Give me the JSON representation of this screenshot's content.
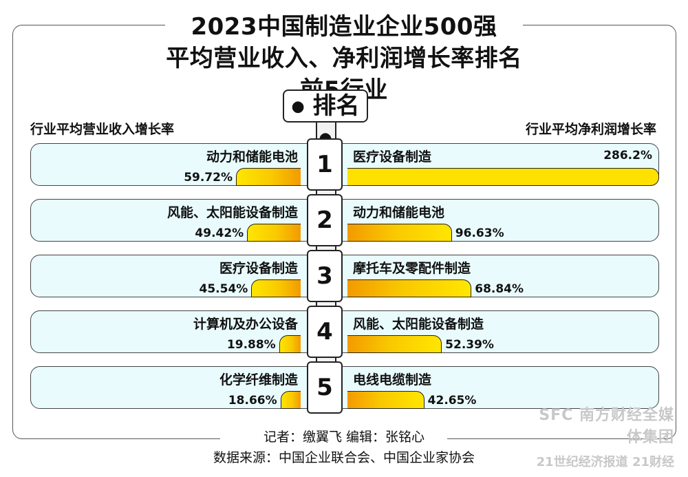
{
  "title": {
    "line1": "2023中国制造业企业500强",
    "line2": "平均营业收入、净利润增长率排名前5行业"
  },
  "rank_label": "排名",
  "left_header": "行业平均营业收入增长率",
  "right_header": "行业平均净利润增长率",
  "chart_data": {
    "type": "bar",
    "categories": [
      "1",
      "2",
      "3",
      "4",
      "5"
    ],
    "series": [
      {
        "name": "行业平均营业收入增长率",
        "labels": [
          "动力和储能电池",
          "风能、太阳能设备制造",
          "医疗设备制造",
          "计算机及办公设备",
          "化学纤维制造"
        ],
        "values": [
          59.72,
          49.42,
          45.54,
          19.88,
          18.66
        ],
        "value_labels": [
          "59.72%",
          "49.42%",
          "45.54%",
          "19.88%",
          "18.66%"
        ]
      },
      {
        "name": "行业平均净利润增长率",
        "labels": [
          "医疗设备制造",
          "动力和储能电池",
          "摩托车及零配件制造",
          "风能、太阳能设备制造",
          "电线电缆制造"
        ],
        "values": [
          286.2,
          96.63,
          68.84,
          52.39,
          42.65
        ],
        "value_labels": [
          "286.2%",
          "96.63%",
          "68.84%",
          "52.39%",
          "42.65%"
        ]
      }
    ],
    "unit": "%",
    "bar_color": "#ffe100",
    "box_color": "#e9fbfd"
  },
  "footer": {
    "credits": "记者：缴翼飞  编辑：张铭心",
    "source": "数据来源：中国企业联合会、中国企业家协会"
  },
  "logo": {
    "line1": "SFC 南方财经全媒体集团",
    "line2": "21世纪经济报道 21财经"
  }
}
